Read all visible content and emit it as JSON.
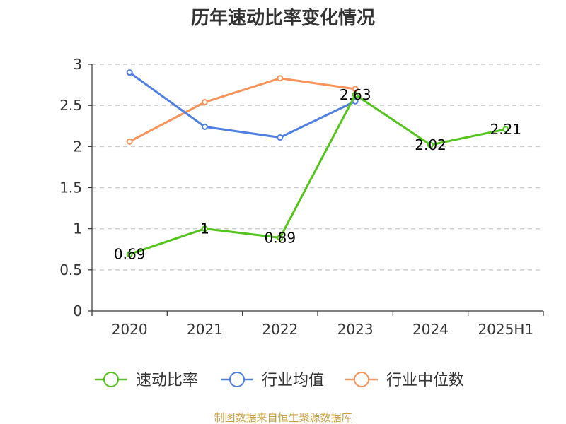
{
  "chart_data": {
    "type": "line",
    "title": "历年速动比率变化情况",
    "categories": [
      "2020",
      "2021",
      "2022",
      "2023",
      "2024",
      "2025H1"
    ],
    "ylim": [
      0,
      3
    ],
    "yticks": [
      "0",
      "0.5",
      "1",
      "1.5",
      "2",
      "2.5",
      "3"
    ],
    "grid": true,
    "legend_position": "bottom",
    "series": [
      {
        "name": "速动比率",
        "color": "#52c41a",
        "values": [
          0.69,
          1,
          0.89,
          2.63,
          2.02,
          2.21
        ],
        "labels": [
          "0.69",
          "1",
          "0.89",
          "2.63",
          "2.02",
          "2.21"
        ]
      },
      {
        "name": "行业均值",
        "color": "#4f7fe0",
        "values": [
          2.9,
          2.24,
          2.11,
          2.55,
          null,
          null
        ]
      },
      {
        "name": "行业中位数",
        "color": "#f8935a",
        "values": [
          2.06,
          2.54,
          2.83,
          2.7,
          null,
          null
        ]
      }
    ]
  },
  "footer": {
    "source": "制图数据来自恒生聚源数据库"
  }
}
